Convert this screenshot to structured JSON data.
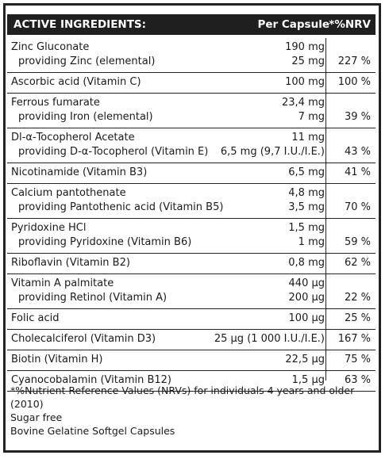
{
  "header": {
    "title": "ACTIVE INGREDIENTS:",
    "per_capsule": "Per Capsule",
    "nrv": "*%NRV"
  },
  "rows": [
    {
      "lines": [
        {
          "name": "Zinc Gluconate",
          "amount": "190 mg",
          "nrv": ""
        },
        {
          "name": "providing Zinc (elemental)",
          "amount": "25 mg",
          "nrv": "227 %",
          "sub": true
        }
      ]
    },
    {
      "lines": [
        {
          "name": "Ascorbic acid (Vitamin C)",
          "amount": "100 mg",
          "nrv": "100 %"
        }
      ]
    },
    {
      "lines": [
        {
          "name": "Ferrous fumarate",
          "amount": "23,4 mg",
          "nrv": ""
        },
        {
          "name": "providing Iron (elemental)",
          "amount": "7 mg",
          "nrv": "39 %",
          "sub": true
        }
      ]
    },
    {
      "lines": [
        {
          "name": "Dl-α-Tocopherol Acetate",
          "amount": "11 mg",
          "nrv": ""
        },
        {
          "name": "providing D-α-Tocopherol (Vitamin E)",
          "amount": "6,5 mg (9,7 I.U./I.E.)",
          "nrv": "43 %",
          "sub": true
        }
      ]
    },
    {
      "lines": [
        {
          "name": "Nicotinamide (Vitamin B3)",
          "amount": "6,5 mg",
          "nrv": "41 %"
        }
      ]
    },
    {
      "lines": [
        {
          "name": "Calcium pantothenate",
          "amount": "4,8 mg",
          "nrv": ""
        },
        {
          "name": "providing Pantothenic acid (Vitamin B5)",
          "amount": "3,5 mg",
          "nrv": "70 %",
          "sub": true
        }
      ]
    },
    {
      "lines": [
        {
          "name": "Pyridoxine HCl",
          "amount": "1,5 mg",
          "nrv": ""
        },
        {
          "name": "providing Pyridoxine (Vitamin B6)",
          "amount": "1 mg",
          "nrv": "59 %",
          "sub": true
        }
      ]
    },
    {
      "lines": [
        {
          "name": "Riboflavin (Vitamin B2)",
          "amount": "0,8 mg",
          "nrv": "62 %"
        }
      ]
    },
    {
      "lines": [
        {
          "name": "Vitamin A palmitate",
          "amount": "440 µg",
          "nrv": ""
        },
        {
          "name": "providing Retinol (Vitamin A)",
          "amount": "200 µg",
          "nrv": "22 %",
          "sub": true
        }
      ]
    },
    {
      "lines": [
        {
          "name": "Folic acid",
          "amount": "100 µg",
          "nrv": "25 %"
        }
      ]
    },
    {
      "lines": [
        {
          "name": "Cholecalciferol (Vitamin D3)",
          "amount": "25 µg (1 000 I.U./I.E.)",
          "nrv": "167 %"
        }
      ]
    },
    {
      "lines": [
        {
          "name": "Biotin (Vitamin H)",
          "amount": "22,5 µg",
          "nrv": "75 %"
        }
      ]
    },
    {
      "lines": [
        {
          "name": "Cyanocobalamin (Vitamin B12)",
          "amount": "1,5 µg",
          "nrv": "63 %"
        }
      ]
    }
  ],
  "footnote": {
    "nrv_note": "*%Nutrient Reference Values (NRVs) for individuals 4 years and older (2010)",
    "sugar_free": "Sugar free",
    "capsules": "Bovine Gelatine Softgel Capsules"
  }
}
